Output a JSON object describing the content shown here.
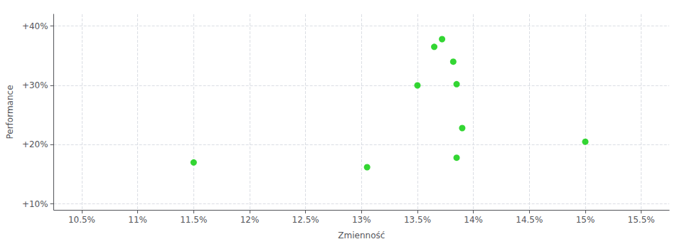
{
  "chart_data": {
    "type": "scatter",
    "xlabel": "Zmienność",
    "ylabel": "Performance",
    "x": [
      11.5,
      13.05,
      13.5,
      13.65,
      13.72,
      13.82,
      13.85,
      13.9,
      13.85,
      15.0
    ],
    "values": [
      17.0,
      16.2,
      30.0,
      36.5,
      37.8,
      34.0,
      30.2,
      22.8,
      17.8,
      20.5
    ],
    "color": "#00cc00",
    "xlim": [
      10.25,
      15.75
    ],
    "ylim": [
      9.0,
      42.0
    ],
    "xticks": [
      {
        "value": 10.5,
        "label": "10.5%"
      },
      {
        "value": 11.0,
        "label": "11%"
      },
      {
        "value": 11.5,
        "label": "11.5%"
      },
      {
        "value": 12.0,
        "label": "12%"
      },
      {
        "value": 12.5,
        "label": "12.5%"
      },
      {
        "value": 13.0,
        "label": "13%"
      },
      {
        "value": 13.5,
        "label": "13.5%"
      },
      {
        "value": 14.0,
        "label": "14%"
      },
      {
        "value": 14.5,
        "label": "14.5%"
      },
      {
        "value": 15.0,
        "label": "15%"
      },
      {
        "value": 15.5,
        "label": "15.5%"
      }
    ],
    "yticks": [
      {
        "value": 10,
        "label": "+10%"
      },
      {
        "value": 20,
        "label": "+20%"
      },
      {
        "value": 30,
        "label": "+30%"
      },
      {
        "value": 40,
        "label": "+40%"
      }
    ],
    "grid": true
  }
}
